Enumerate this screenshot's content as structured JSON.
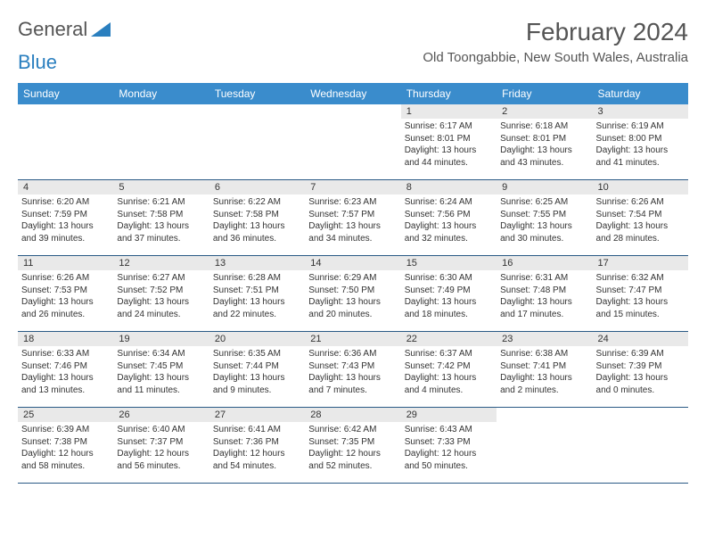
{
  "logo": {
    "text_a": "General",
    "text_b": "Blue"
  },
  "title": "February 2024",
  "location": "Old Toongabbie, New South Wales, Australia",
  "colors": {
    "header_bg": "#3a8ccc",
    "header_text": "#ffffff",
    "daynum_bg": "#e9e9e9",
    "cell_border": "#2a5a85",
    "logo_blue": "#2a7fbf"
  },
  "weekdays": [
    "Sunday",
    "Monday",
    "Tuesday",
    "Wednesday",
    "Thursday",
    "Friday",
    "Saturday"
  ],
  "grid": [
    [
      null,
      null,
      null,
      null,
      {
        "n": "1",
        "sr": "6:17 AM",
        "ss": "8:01 PM",
        "dl": "13 hours and 44 minutes."
      },
      {
        "n": "2",
        "sr": "6:18 AM",
        "ss": "8:01 PM",
        "dl": "13 hours and 43 minutes."
      },
      {
        "n": "3",
        "sr": "6:19 AM",
        "ss": "8:00 PM",
        "dl": "13 hours and 41 minutes."
      }
    ],
    [
      {
        "n": "4",
        "sr": "6:20 AM",
        "ss": "7:59 PM",
        "dl": "13 hours and 39 minutes."
      },
      {
        "n": "5",
        "sr": "6:21 AM",
        "ss": "7:58 PM",
        "dl": "13 hours and 37 minutes."
      },
      {
        "n": "6",
        "sr": "6:22 AM",
        "ss": "7:58 PM",
        "dl": "13 hours and 36 minutes."
      },
      {
        "n": "7",
        "sr": "6:23 AM",
        "ss": "7:57 PM",
        "dl": "13 hours and 34 minutes."
      },
      {
        "n": "8",
        "sr": "6:24 AM",
        "ss": "7:56 PM",
        "dl": "13 hours and 32 minutes."
      },
      {
        "n": "9",
        "sr": "6:25 AM",
        "ss": "7:55 PM",
        "dl": "13 hours and 30 minutes."
      },
      {
        "n": "10",
        "sr": "6:26 AM",
        "ss": "7:54 PM",
        "dl": "13 hours and 28 minutes."
      }
    ],
    [
      {
        "n": "11",
        "sr": "6:26 AM",
        "ss": "7:53 PM",
        "dl": "13 hours and 26 minutes."
      },
      {
        "n": "12",
        "sr": "6:27 AM",
        "ss": "7:52 PM",
        "dl": "13 hours and 24 minutes."
      },
      {
        "n": "13",
        "sr": "6:28 AM",
        "ss": "7:51 PM",
        "dl": "13 hours and 22 minutes."
      },
      {
        "n": "14",
        "sr": "6:29 AM",
        "ss": "7:50 PM",
        "dl": "13 hours and 20 minutes."
      },
      {
        "n": "15",
        "sr": "6:30 AM",
        "ss": "7:49 PM",
        "dl": "13 hours and 18 minutes."
      },
      {
        "n": "16",
        "sr": "6:31 AM",
        "ss": "7:48 PM",
        "dl": "13 hours and 17 minutes."
      },
      {
        "n": "17",
        "sr": "6:32 AM",
        "ss": "7:47 PM",
        "dl": "13 hours and 15 minutes."
      }
    ],
    [
      {
        "n": "18",
        "sr": "6:33 AM",
        "ss": "7:46 PM",
        "dl": "13 hours and 13 minutes."
      },
      {
        "n": "19",
        "sr": "6:34 AM",
        "ss": "7:45 PM",
        "dl": "13 hours and 11 minutes."
      },
      {
        "n": "20",
        "sr": "6:35 AM",
        "ss": "7:44 PM",
        "dl": "13 hours and 9 minutes."
      },
      {
        "n": "21",
        "sr": "6:36 AM",
        "ss": "7:43 PM",
        "dl": "13 hours and 7 minutes."
      },
      {
        "n": "22",
        "sr": "6:37 AM",
        "ss": "7:42 PM",
        "dl": "13 hours and 4 minutes."
      },
      {
        "n": "23",
        "sr": "6:38 AM",
        "ss": "7:41 PM",
        "dl": "13 hours and 2 minutes."
      },
      {
        "n": "24",
        "sr": "6:39 AM",
        "ss": "7:39 PM",
        "dl": "13 hours and 0 minutes."
      }
    ],
    [
      {
        "n": "25",
        "sr": "6:39 AM",
        "ss": "7:38 PM",
        "dl": "12 hours and 58 minutes."
      },
      {
        "n": "26",
        "sr": "6:40 AM",
        "ss": "7:37 PM",
        "dl": "12 hours and 56 minutes."
      },
      {
        "n": "27",
        "sr": "6:41 AM",
        "ss": "7:36 PM",
        "dl": "12 hours and 54 minutes."
      },
      {
        "n": "28",
        "sr": "6:42 AM",
        "ss": "7:35 PM",
        "dl": "12 hours and 52 minutes."
      },
      {
        "n": "29",
        "sr": "6:43 AM",
        "ss": "7:33 PM",
        "dl": "12 hours and 50 minutes."
      },
      null,
      null
    ]
  ],
  "labels": {
    "sunrise": "Sunrise:",
    "sunset": "Sunset:",
    "daylight": "Daylight:"
  }
}
